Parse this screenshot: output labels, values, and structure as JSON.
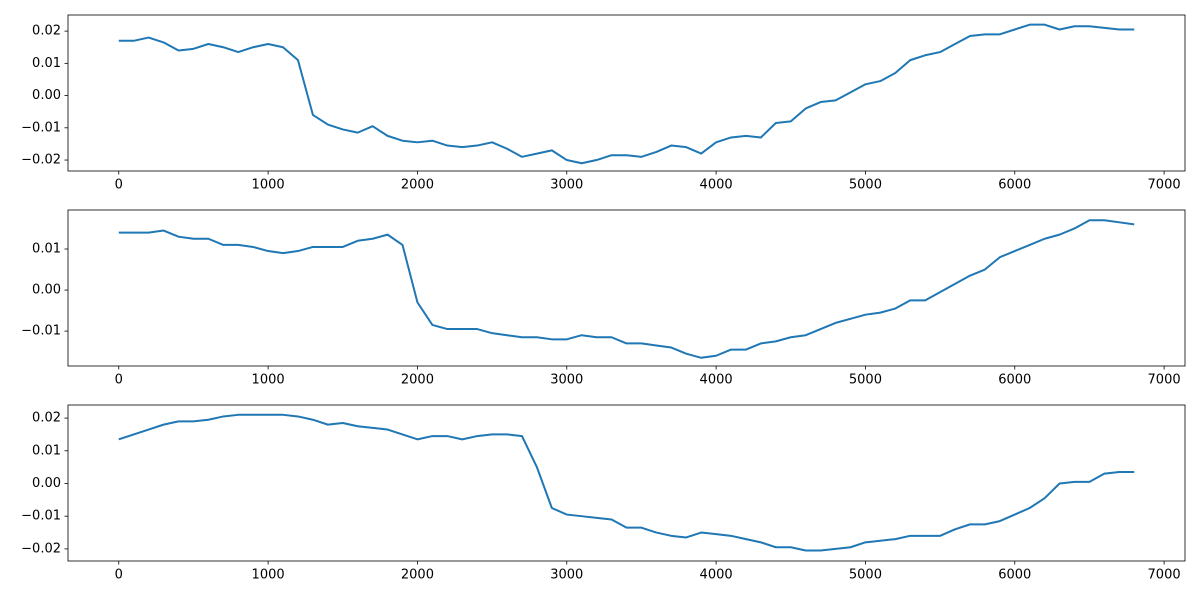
{
  "chart_data": [
    {
      "type": "line",
      "color": "#1f77b4",
      "x": [
        0,
        100,
        200,
        300,
        400,
        500,
        600,
        700,
        800,
        900,
        1000,
        1100,
        1200,
        1300,
        1400,
        1500,
        1600,
        1700,
        1800,
        1900,
        2000,
        2100,
        2200,
        2300,
        2400,
        2500,
        2600,
        2700,
        2800,
        2900,
        3000,
        3100,
        3200,
        3300,
        3400,
        3500,
        3600,
        3700,
        3800,
        3900,
        4000,
        4100,
        4200,
        4300,
        4400,
        4500,
        4600,
        4700,
        4800,
        4900,
        5000,
        5100,
        5200,
        5300,
        5400,
        5500,
        5600,
        5700,
        5800,
        5900,
        6000,
        6100,
        6200,
        6300,
        6400,
        6500,
        6600,
        6700,
        6800
      ],
      "values": [
        0.017,
        0.017,
        0.018,
        0.0165,
        0.014,
        0.0145,
        0.016,
        0.015,
        0.0135,
        0.015,
        0.016,
        0.015,
        0.011,
        -0.006,
        -0.009,
        -0.0105,
        -0.0115,
        -0.0095,
        -0.0125,
        -0.014,
        -0.0145,
        -0.014,
        -0.0155,
        -0.016,
        -0.0155,
        -0.0145,
        -0.0165,
        -0.019,
        -0.018,
        -0.017,
        -0.02,
        -0.021,
        -0.02,
        -0.0185,
        -0.0185,
        -0.019,
        -0.0175,
        -0.0155,
        -0.016,
        -0.018,
        -0.0145,
        -0.013,
        -0.0125,
        -0.013,
        -0.0085,
        -0.008,
        -0.004,
        -0.002,
        -0.0015,
        0.001,
        0.0035,
        0.0045,
        0.007,
        0.011,
        0.0125,
        0.0135,
        0.016,
        0.0185,
        0.019,
        0.019,
        0.0205,
        0.022,
        0.022,
        0.0205,
        0.0215,
        0.0215,
        0.021,
        0.0205,
        0.0205
      ],
      "xlim": [
        -340,
        7140
      ],
      "xticks": [
        0,
        1000,
        2000,
        3000,
        4000,
        5000,
        6000,
        7000
      ],
      "ylim": [
        -0.0234,
        0.025
      ],
      "yticks": [
        {
          "value": -0.02,
          "label": "−0.02"
        },
        {
          "value": -0.01,
          "label": "−0.01"
        },
        {
          "value": 0,
          "label": "0.00"
        },
        0.01,
        0.02
      ]
    },
    {
      "type": "line",
      "color": "#1f77b4",
      "x": [
        0,
        100,
        200,
        300,
        400,
        500,
        600,
        700,
        800,
        900,
        1000,
        1100,
        1200,
        1300,
        1400,
        1500,
        1600,
        1700,
        1800,
        1900,
        2000,
        2100,
        2200,
        2300,
        2400,
        2500,
        2600,
        2700,
        2800,
        2900,
        3000,
        3100,
        3200,
        3300,
        3400,
        3500,
        3600,
        3700,
        3800,
        3900,
        4000,
        4100,
        4200,
        4300,
        4400,
        4500,
        4600,
        4700,
        4800,
        4900,
        5000,
        5100,
        5200,
        5300,
        5400,
        5500,
        5600,
        5700,
        5800,
        5900,
        6000,
        6100,
        6200,
        6300,
        6400,
        6500,
        6600,
        6700,
        6800
      ],
      "values": [
        0.014,
        0.014,
        0.014,
        0.0145,
        0.013,
        0.0125,
        0.0125,
        0.011,
        0.011,
        0.0105,
        0.0095,
        0.009,
        0.0095,
        0.0105,
        0.0105,
        0.0105,
        0.012,
        0.0125,
        0.0135,
        0.011,
        -0.003,
        -0.0085,
        -0.0095,
        -0.0095,
        -0.0095,
        -0.0105,
        -0.011,
        -0.0115,
        -0.0115,
        -0.012,
        -0.012,
        -0.011,
        -0.0115,
        -0.0115,
        -0.013,
        -0.013,
        -0.0135,
        -0.014,
        -0.0155,
        -0.0165,
        -0.016,
        -0.0145,
        -0.0145,
        -0.013,
        -0.0125,
        -0.0115,
        -0.011,
        -0.0095,
        -0.008,
        -0.007,
        -0.006,
        -0.0055,
        -0.0045,
        -0.0025,
        -0.0025,
        -0.0005,
        0.0015,
        0.0035,
        0.005,
        0.008,
        0.0095,
        0.011,
        0.0125,
        0.0135,
        0.015,
        0.017,
        0.017,
        0.0165,
        0.016
      ],
      "xlim": [
        -340,
        7140
      ],
      "xticks": [
        0,
        1000,
        2000,
        3000,
        4000,
        5000,
        6000,
        7000
      ],
      "ylim": [
        -0.0185,
        0.0195
      ],
      "yticks": [
        {
          "value": -0.01,
          "label": "−0.01"
        },
        {
          "value": 0,
          "label": "0.00"
        },
        0.01
      ]
    },
    {
      "type": "line",
      "color": "#1f77b4",
      "x": [
        0,
        100,
        200,
        300,
        400,
        500,
        600,
        700,
        800,
        900,
        1000,
        1100,
        1200,
        1300,
        1400,
        1500,
        1600,
        1700,
        1800,
        1900,
        2000,
        2100,
        2200,
        2300,
        2400,
        2500,
        2600,
        2700,
        2800,
        2900,
        3000,
        3100,
        3200,
        3300,
        3400,
        3500,
        3600,
        3700,
        3800,
        3900,
        4000,
        4100,
        4200,
        4300,
        4400,
        4500,
        4600,
        4700,
        4800,
        4900,
        5000,
        5100,
        5200,
        5300,
        5400,
        5500,
        5600,
        5700,
        5800,
        5900,
        6000,
        6100,
        6200,
        6300,
        6400,
        6500,
        6600,
        6700,
        6800
      ],
      "values": [
        0.0135,
        0.015,
        0.0165,
        0.018,
        0.019,
        0.019,
        0.0195,
        0.0205,
        0.021,
        0.021,
        0.021,
        0.021,
        0.0205,
        0.0195,
        0.018,
        0.0185,
        0.0175,
        0.017,
        0.0165,
        0.015,
        0.0135,
        0.0145,
        0.0145,
        0.0135,
        0.0145,
        0.015,
        0.015,
        0.0145,
        0.005,
        -0.0075,
        -0.0095,
        -0.01,
        -0.0105,
        -0.011,
        -0.0135,
        -0.0135,
        -0.015,
        -0.016,
        -0.0165,
        -0.015,
        -0.0155,
        -0.016,
        -0.017,
        -0.018,
        -0.0195,
        -0.0195,
        -0.0205,
        -0.0205,
        -0.02,
        -0.0195,
        -0.018,
        -0.0175,
        -0.017,
        -0.016,
        -0.016,
        -0.016,
        -0.014,
        -0.0125,
        -0.0125,
        -0.0115,
        -0.0095,
        -0.0075,
        -0.0045,
        0,
        0.0005,
        0.0005,
        0.003,
        0.0035,
        0.0035
      ],
      "xlim": [
        -340,
        7140
      ],
      "xticks": [
        0,
        1000,
        2000,
        3000,
        4000,
        5000,
        6000,
        7000
      ],
      "ylim": [
        -0.0237,
        0.024
      ],
      "yticks": [
        {
          "value": -0.02,
          "label": "−0.02"
        },
        {
          "value": -0.01,
          "label": "−0.01"
        },
        {
          "value": 0,
          "label": "0.00"
        },
        0.01,
        0.02
      ]
    }
  ]
}
